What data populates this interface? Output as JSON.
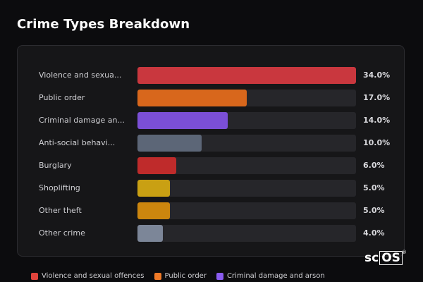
{
  "page_title": "Crime Types Breakdown",
  "chart_data": {
    "type": "bar",
    "orientation": "horizontal",
    "categories": [
      "Violence and sexua...",
      "Public order",
      "Criminal damage an...",
      "Anti-social behavi...",
      "Burglary",
      "Shoplifting",
      "Other theft",
      "Other crime"
    ],
    "values": [
      34.0,
      17.0,
      14.0,
      10.0,
      6.0,
      5.0,
      5.0,
      4.0
    ],
    "value_labels": [
      "34.0%",
      "17.0%",
      "14.0%",
      "10.0%",
      "6.0%",
      "5.0%",
      "5.0%",
      "4.0%"
    ],
    "colors": [
      "#c9373e",
      "#d8671c",
      "#7b4fd6",
      "#5c6677",
      "#bf2b2b",
      "#c9a013",
      "#cc860e",
      "#7c8698"
    ],
    "xlim": [
      0,
      34.0
    ],
    "grid": false
  },
  "legend": [
    {
      "label": "Violence and sexual offences",
      "color": "#e0443c"
    },
    {
      "label": "Public order",
      "color": "#f07a27"
    },
    {
      "label": "Criminal damage and arson",
      "color": "#8a5cf0"
    }
  ],
  "brand": {
    "prefix": "sc",
    "boxed": "OS",
    "mark": "®"
  }
}
